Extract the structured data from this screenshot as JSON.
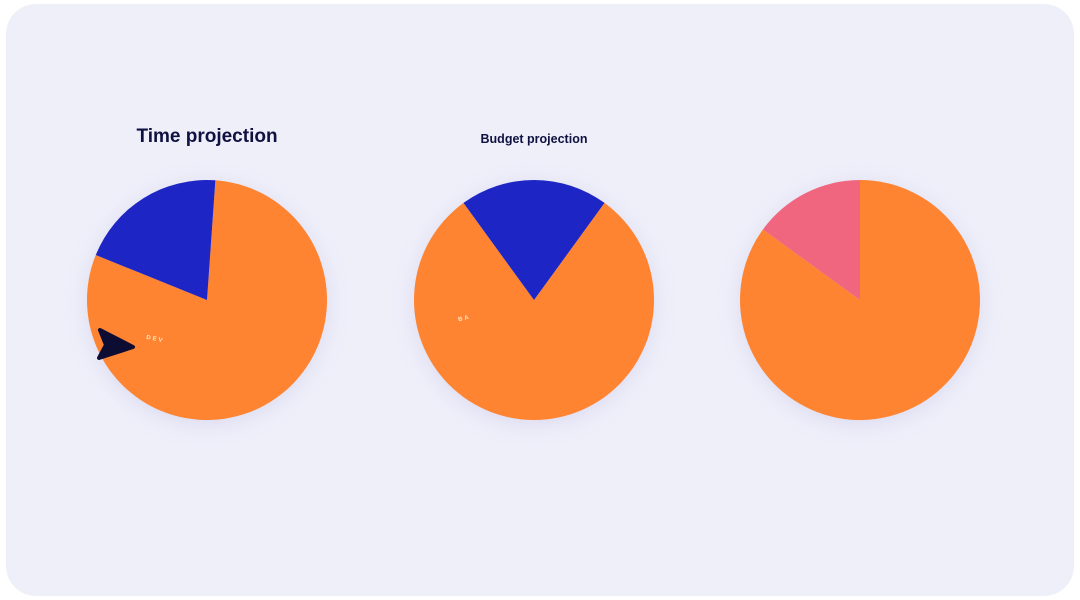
{
  "colors": {
    "background": "#efeffa",
    "title": "#0f1240",
    "orange": "#fe8431",
    "blue": "#1d26c4",
    "pink": "#f0667f",
    "label": "#fde7c8",
    "cursor": "#0d0c33"
  },
  "chart_data": [
    {
      "type": "pie",
      "title": "Time projection",
      "slices": [
        {
          "label": "DEV",
          "value": 80,
          "color": "#fe8431"
        },
        {
          "label": "",
          "value": 20,
          "color": "#1d26c4"
        }
      ]
    },
    {
      "type": "pie",
      "title": "Budget projection",
      "slices": [
        {
          "label": "BA",
          "value": 80,
          "color": "#fe8431"
        },
        {
          "label": "",
          "value": 20,
          "color": "#1d26c4"
        }
      ]
    },
    {
      "type": "pie",
      "title": "",
      "slices": [
        {
          "label": "",
          "value": 85,
          "color": "#fe8431"
        },
        {
          "label": "",
          "value": 15,
          "color": "#f0667f"
        }
      ]
    }
  ],
  "cursor": {
    "icon": "arrow-cursor-icon"
  }
}
